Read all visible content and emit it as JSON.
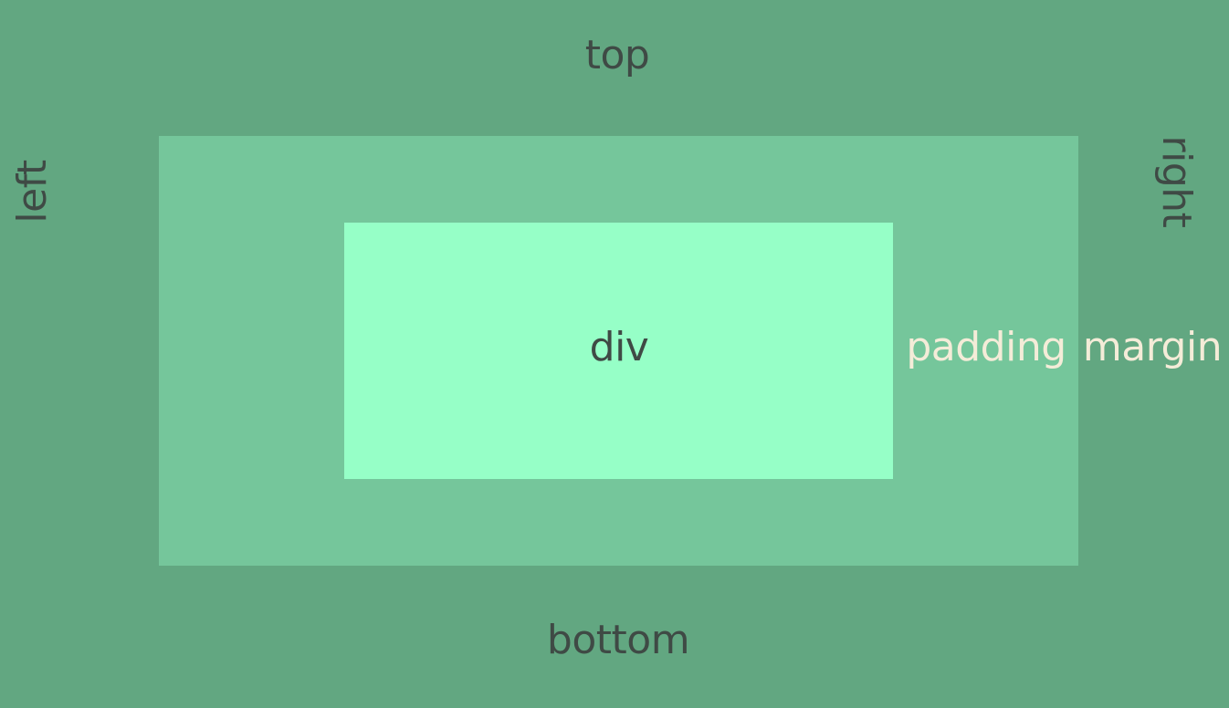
{
  "labels": {
    "top": "top",
    "bottom": "bottom",
    "left": "left",
    "right": "right",
    "content": "div",
    "padding": "padding",
    "margin": "margin"
  },
  "colors": {
    "margin": "#62a781",
    "padding": "#75c69b",
    "content": "#96ffc7",
    "dark_text": "#3f4a45",
    "light_text": "#f4ecd8"
  }
}
